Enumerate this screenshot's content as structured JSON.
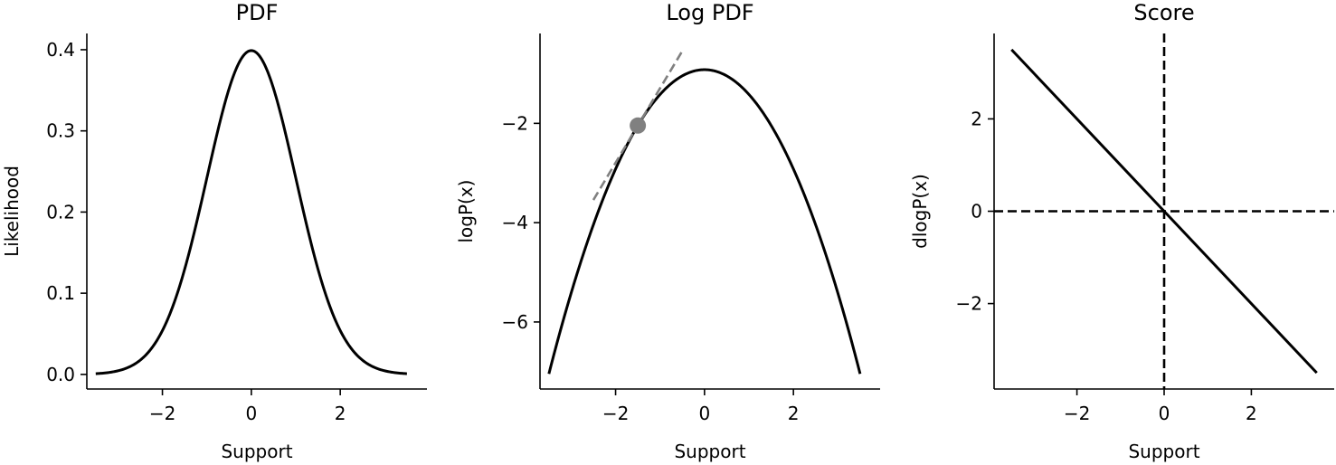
{
  "chart_data": [
    {
      "type": "line",
      "title": "PDF",
      "xlabel": "Support",
      "ylabel": "Likelihood",
      "xlim": [
        -3.7,
        3.95
      ],
      "ylim": [
        -0.018,
        0.42
      ],
      "xticks": [
        -2,
        0,
        2
      ],
      "xtick_labels": [
        "−2",
        "0",
        "2"
      ],
      "yticks": [
        0.0,
        0.1,
        0.2,
        0.3,
        0.4
      ],
      "ytick_labels": [
        "0.0",
        "0.1",
        "0.2",
        "0.3",
        "0.4"
      ],
      "grid": false,
      "series": [
        {
          "function": "standard normal pdf",
          "color": "#000000",
          "x": [
            -3.5,
            -3.0,
            -2.5,
            -2.0,
            -1.5,
            -1.0,
            -0.5,
            0.0,
            0.5,
            1.0,
            1.5,
            2.0,
            2.5,
            3.0,
            3.5
          ],
          "y": [
            0.0009,
            0.0044,
            0.0175,
            0.054,
            0.1295,
            0.242,
            0.3521,
            0.3989,
            0.3521,
            0.242,
            0.1295,
            0.054,
            0.0175,
            0.0044,
            0.0009
          ]
        }
      ]
    },
    {
      "type": "line",
      "title": "Log PDF",
      "xlabel": "Support",
      "ylabel": "logP(x)",
      "xlim": [
        -3.7,
        3.95
      ],
      "ylim": [
        -7.35,
        -0.19
      ],
      "xticks": [
        -2,
        0,
        2
      ],
      "xtick_labels": [
        "−2",
        "0",
        "2"
      ],
      "yticks": [
        -6,
        -4,
        -2
      ],
      "ytick_labels": [
        "−6",
        "−4",
        "−2"
      ],
      "grid": false,
      "series": [
        {
          "function": "standard normal log pdf",
          "color": "#000000",
          "x": [
            -3.5,
            -3.0,
            -2.5,
            -2.0,
            -1.5,
            -1.0,
            -0.5,
            0.0,
            0.5,
            1.0,
            1.5,
            2.0,
            2.5,
            3.0,
            3.5
          ],
          "y": [
            -7.044,
            -5.419,
            -4.044,
            -2.919,
            -2.044,
            -1.419,
            -1.044,
            -0.919,
            -1.044,
            -1.419,
            -2.044,
            -2.919,
            -4.044,
            -5.419,
            -7.044
          ]
        },
        {
          "style": "tangent",
          "color": "#808080",
          "x": [
            -2.5,
            -0.5
          ],
          "y": [
            -3.544,
            -0.544
          ]
        }
      ],
      "point": {
        "x": -1.5,
        "y": -2.044,
        "color": "#808080"
      }
    },
    {
      "type": "line",
      "title": "Score",
      "xlabel": "Support",
      "ylabel": "dlogP(x)",
      "xlim": [
        -3.9,
        3.9
      ],
      "ylim": [
        -3.85,
        3.85
      ],
      "xticks": [
        -2,
        0,
        2
      ],
      "xtick_labels": [
        "−2",
        "0",
        "2"
      ],
      "yticks": [
        -2,
        0,
        2
      ],
      "ytick_labels": [
        "−2",
        "0",
        "2"
      ],
      "grid": false,
      "series": [
        {
          "function": "score = -x",
          "color": "#000000",
          "x": [
            -3.5,
            3.5
          ],
          "y": [
            3.5,
            -3.5
          ]
        }
      ],
      "reference_lines": [
        {
          "orientation": "horizontal",
          "value": 0,
          "color": "#000000",
          "style": "dashed"
        },
        {
          "orientation": "vertical",
          "value": 0,
          "color": "#000000",
          "style": "dashed"
        }
      ]
    }
  ]
}
